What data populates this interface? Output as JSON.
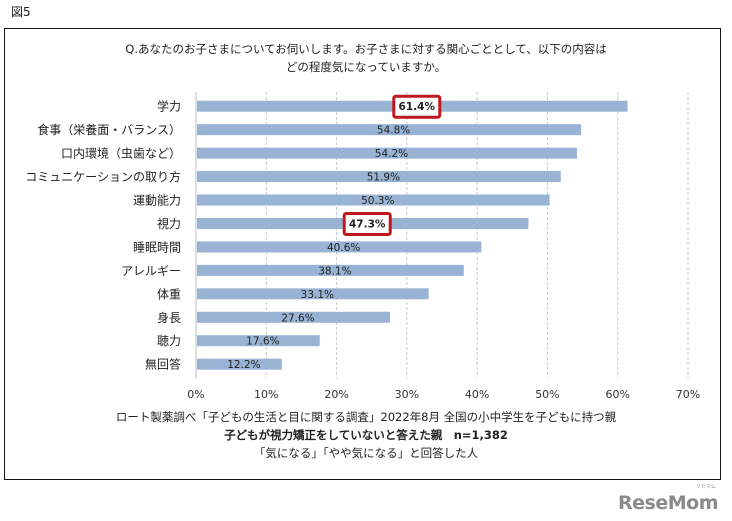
{
  "figure_label": "図5",
  "question": {
    "line1": "Q.あなたのお子さまについてお伺いします。お子さまに対する関心ごととして、以下の内容は",
    "line2": "どの程度気になっていますか。"
  },
  "chart_data": {
    "type": "bar",
    "orientation": "horizontal",
    "title": "Q.あなたのお子さまについてお伺いします。お子さまに対する関心ごととして、以下の内容はどの程度気になっていますか。",
    "categories": [
      "学力",
      "食事（栄養面・バランス）",
      "口内環境（虫歯など）",
      "コミュニケーションの取り方",
      "運動能力",
      "視力",
      "睡眠時間",
      "アレルギー",
      "体重",
      "身長",
      "聴力",
      "無回答"
    ],
    "values": [
      61.4,
      54.8,
      54.2,
      51.9,
      50.3,
      47.3,
      40.6,
      38.1,
      33.1,
      27.6,
      17.6,
      12.2
    ],
    "value_labels": [
      "61.4%",
      "54.8%",
      "54.2%",
      "51.9%",
      "50.3%",
      "47.3%",
      "40.6%",
      "38.1%",
      "33.1%",
      "27.6%",
      "17.6%",
      "12.2%"
    ],
    "highlighted": [
      "学力",
      "視力"
    ],
    "xlim": [
      0,
      70
    ],
    "xticks": [
      0,
      10,
      20,
      30,
      40,
      50,
      60,
      70
    ],
    "xtick_labels": [
      "0%",
      "10%",
      "20%",
      "30%",
      "40%",
      "50%",
      "60%",
      "70%"
    ],
    "xlabel": "",
    "ylabel": "",
    "grid": true,
    "legend": "none",
    "colors": {
      "bar": "#98b3d4",
      "highlight_box": "#c0161e",
      "grid": "#c8c8c8"
    }
  },
  "source": {
    "line1": "ロート製薬調べ「子どもの生活と目に関する調査」2022年8月 全国の小中学生を子どもに持つ親",
    "line2": "子どもが視力矯正をしていないと答えた親　n=1,382",
    "line3": "「気になる」「やや気になる」と回答した人"
  },
  "watermark": {
    "text": "ReseMom",
    "sub": "リセマム"
  }
}
